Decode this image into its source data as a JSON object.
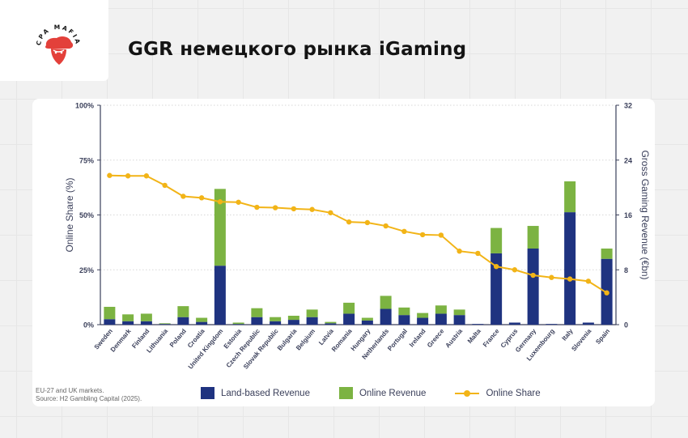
{
  "header": {
    "logo_text": "CPA MAFIA",
    "title": "GGR немецкого рынка iGaming"
  },
  "colors": {
    "land": "#1f3380",
    "online": "#7cb342",
    "share": "#f2b417",
    "axis": "#3a3f5a",
    "logo_red": "#e3403a"
  },
  "notes": {
    "line1": "EU-27 and UK markets.",
    "line2": "Source: H2 Gambling Capital (2025)."
  },
  "legend": {
    "land": "Land-based Revenue",
    "online": "Online Revenue",
    "share": "Online Share"
  },
  "chart_data": {
    "type": "bar",
    "stacked": true,
    "categories": [
      "Sweden",
      "Denmark",
      "Finland",
      "Lithuania",
      "Poland",
      "Croatia",
      "United Kingdom",
      "Estonia",
      "Czech Republic",
      "Slovak Republic",
      "Bulgaria",
      "Belgium",
      "Latvia",
      "Romania",
      "Hungary",
      "Netherlands",
      "Portugal",
      "Ireland",
      "Greece",
      "Austria",
      "Malta",
      "France",
      "Cyprus",
      "Germany",
      "Luxembourg",
      "Italy",
      "Slovenia",
      "Spain"
    ],
    "series": [
      {
        "name": "Land-based Revenue",
        "axis": "right",
        "values": [
          0.8,
          0.5,
          0.5,
          0.1,
          1.1,
          0.4,
          8.6,
          0.1,
          1.1,
          0.5,
          0.7,
          1.1,
          0.2,
          1.6,
          0.6,
          2.3,
          1.4,
          1.0,
          1.6,
          1.4,
          0.1,
          10.4,
          0.3,
          11.1,
          0.1,
          16.4,
          0.3,
          9.6
        ]
      },
      {
        "name": "Online Revenue",
        "axis": "right",
        "values": [
          1.8,
          1.0,
          1.1,
          0.1,
          1.6,
          0.6,
          11.2,
          0.2,
          1.3,
          0.6,
          0.6,
          1.1,
          0.2,
          1.6,
          0.4,
          1.9,
          1.1,
          0.7,
          1.2,
          0.8,
          0.0,
          3.7,
          0.0,
          3.3,
          0.0,
          4.5,
          0.0,
          1.5
        ]
      },
      {
        "name": "Online Share",
        "type": "line",
        "axis": "left",
        "values": [
          68,
          67.8,
          67.8,
          63.5,
          58.5,
          57.8,
          56,
          55.8,
          53.5,
          53.3,
          52.8,
          52.5,
          51,
          46.8,
          46.5,
          45,
          42.5,
          41,
          40.8,
          33.5,
          32.5,
          26.5,
          25,
          22.5,
          21.5,
          20.8,
          19.8,
          14.5
        ]
      }
    ],
    "y_left": {
      "label": "Online Share (%)",
      "ticks": [
        "0%",
        "25%",
        "50%",
        "75%",
        "100%"
      ],
      "range": [
        0,
        100
      ]
    },
    "y_right": {
      "label": "Gross Gaming Revenue (€bn)",
      "ticks": [
        "0",
        "8",
        "16",
        "24",
        "32"
      ],
      "range": [
        0,
        32
      ]
    },
    "legend_position": "bottom",
    "grid": true
  }
}
